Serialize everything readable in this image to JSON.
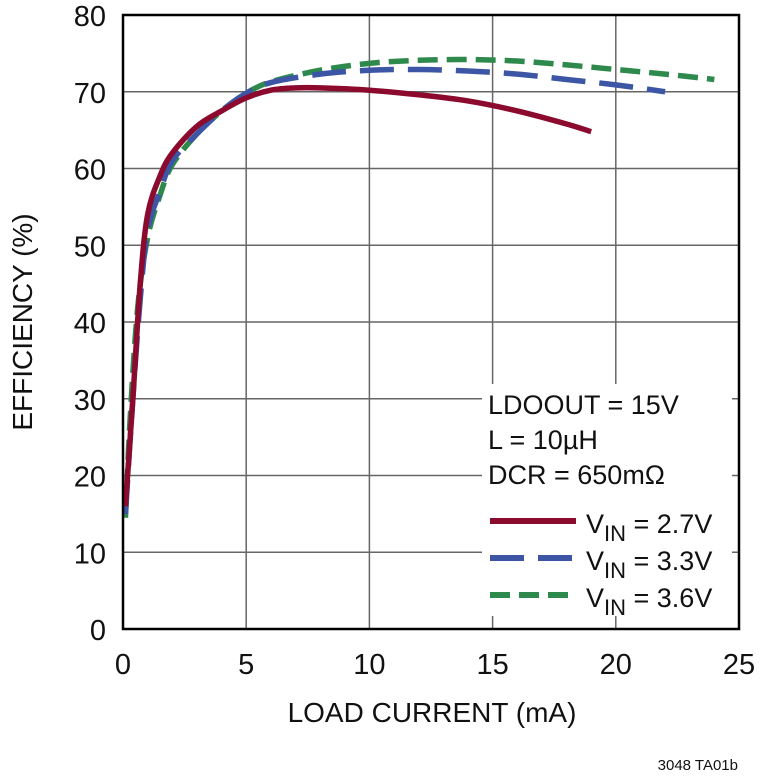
{
  "chart_data": {
    "type": "line",
    "title": "",
    "xlabel": "LOAD CURRENT (mA)",
    "ylabel": "EFFICIENCY (%)",
    "xlim": [
      0,
      25
    ],
    "ylim": [
      0,
      80
    ],
    "xticks": [
      0,
      5,
      10,
      15,
      20,
      25
    ],
    "yticks": [
      0,
      10,
      20,
      30,
      40,
      50,
      60,
      70,
      80
    ],
    "grid": true,
    "legend_position": "lower right (inside plot)",
    "conditions": [
      "LDOOUT = 15V",
      "L = 10µH",
      "DCR = 650mΩ"
    ],
    "series": [
      {
        "name": "VIN = 2.7V",
        "color": "#8b0a2e",
        "style": "solid",
        "x": [
          0.1,
          0.4,
          0.7,
          1.0,
          1.5,
          2.0,
          3.0,
          4.0,
          5.0,
          6.0,
          7.0,
          8.0,
          10.0,
          12.0,
          14.0,
          16.0,
          18.0,
          19.0
        ],
        "y": [
          16,
          30,
          45,
          54,
          59,
          62,
          65.5,
          67.5,
          69.2,
          70.2,
          70.5,
          70.5,
          70.2,
          69.6,
          68.8,
          67.5,
          65.8,
          64.8
        ]
      },
      {
        "name": "VIN = 3.3V",
        "color": "#3c55a5",
        "style": "long-dash",
        "x": [
          0.1,
          0.4,
          0.7,
          1.0,
          1.5,
          2.0,
          3.0,
          4.0,
          5.0,
          6.0,
          8.0,
          10.0,
          12.0,
          14.0,
          16.0,
          18.0,
          20.0,
          22.0
        ],
        "y": [
          15,
          30,
          43,
          52,
          57,
          61,
          64.5,
          67.5,
          69.8,
          71.2,
          72.3,
          72.8,
          72.9,
          72.7,
          72.3,
          71.6,
          70.9,
          70.0
        ]
      },
      {
        "name": "VIN = 3.6V",
        "color": "#2e8a4c",
        "style": "short-dash",
        "x": [
          0.1,
          0.3,
          0.6,
          1.0,
          1.5,
          2.0,
          3.0,
          4.0,
          5.0,
          6.0,
          8.0,
          10.0,
          12.0,
          14.0,
          16.0,
          18.0,
          20.0,
          22.0,
          24.0
        ],
        "y": [
          14.5,
          28,
          42,
          51,
          56.5,
          60.5,
          64.5,
          67.5,
          69.8,
          71.3,
          72.8,
          73.7,
          74.1,
          74.2,
          74.0,
          73.5,
          72.9,
          72.3,
          71.6
        ]
      }
    ],
    "footnote": "3048 TA01b"
  },
  "axes": {
    "xlabel": "LOAD CURRENT (mA)",
    "ylabel": "EFFICIENCY (%)",
    "xtick_labels": [
      "0",
      "5",
      "10",
      "15",
      "20",
      "25"
    ],
    "ytick_labels": [
      "0",
      "10",
      "20",
      "30",
      "40",
      "50",
      "60",
      "70",
      "80"
    ]
  },
  "legend": {
    "conditions": [
      "LDOOUT = 15V",
      "L = 10µH",
      "DCR = 650mΩ"
    ],
    "entries": [
      {
        "prefix": "V",
        "sub": "IN",
        "suffix": " = 2.7V",
        "color": "#8b0a2e"
      },
      {
        "prefix": "V",
        "sub": "IN",
        "suffix": " = 3.3V",
        "color": "#3c55a5"
      },
      {
        "prefix": "V",
        "sub": "IN",
        "suffix": " = 3.6V",
        "color": "#2e8a4c"
      }
    ]
  },
  "footnote": "3048 TA01b"
}
